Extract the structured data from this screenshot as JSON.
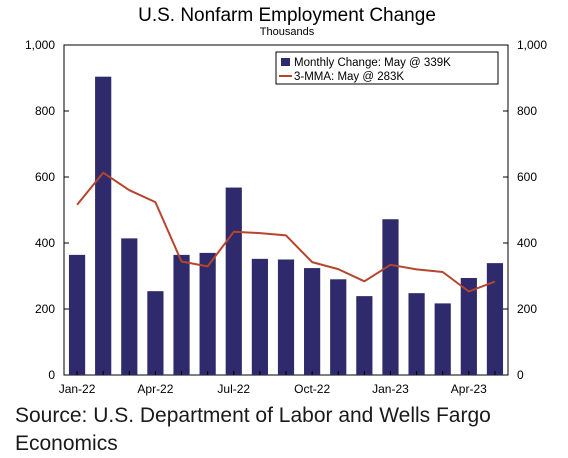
{
  "chart_data": {
    "type": "bar",
    "title": "U.S. Nonfarm Employment Change",
    "subtitle": "Thousands",
    "categories": [
      "Jan-22",
      "Feb-22",
      "Mar-22",
      "Apr-22",
      "May-22",
      "Jun-22",
      "Jul-22",
      "Aug-22",
      "Sep-22",
      "Oct-22",
      "Nov-22",
      "Dec-22",
      "Jan-23",
      "Feb-23",
      "Mar-23",
      "Apr-23",
      "May-23"
    ],
    "x_tick_labels": [
      "Jan-22",
      "Apr-22",
      "Jul-22",
      "Oct-22",
      "Jan-23",
      "Apr-23"
    ],
    "y_ticks": [
      "0",
      "200",
      "400",
      "600",
      "800",
      "1,000"
    ],
    "ylim": [
      0,
      1000
    ],
    "grid": false,
    "legend_position": "top-right",
    "series": [
      {
        "name": "Monthly Change: May @ 339K",
        "type": "bar",
        "color": "#2e2a6b",
        "values": [
          364,
          904,
          414,
          254,
          364,
          370,
          568,
          352,
          350,
          324,
          290,
          239,
          472,
          248,
          217,
          294,
          339
        ]
      },
      {
        "name": "3-MMA: May @ 283K",
        "type": "line",
        "color": "#b5452c",
        "values": [
          516,
          613,
          560,
          524,
          344,
          329,
          434,
          430,
          423,
          342,
          321,
          284,
          334,
          320,
          312,
          253,
          283
        ]
      }
    ]
  },
  "source": "Source: U.S. Department of Labor and Wells Fargo Economics"
}
